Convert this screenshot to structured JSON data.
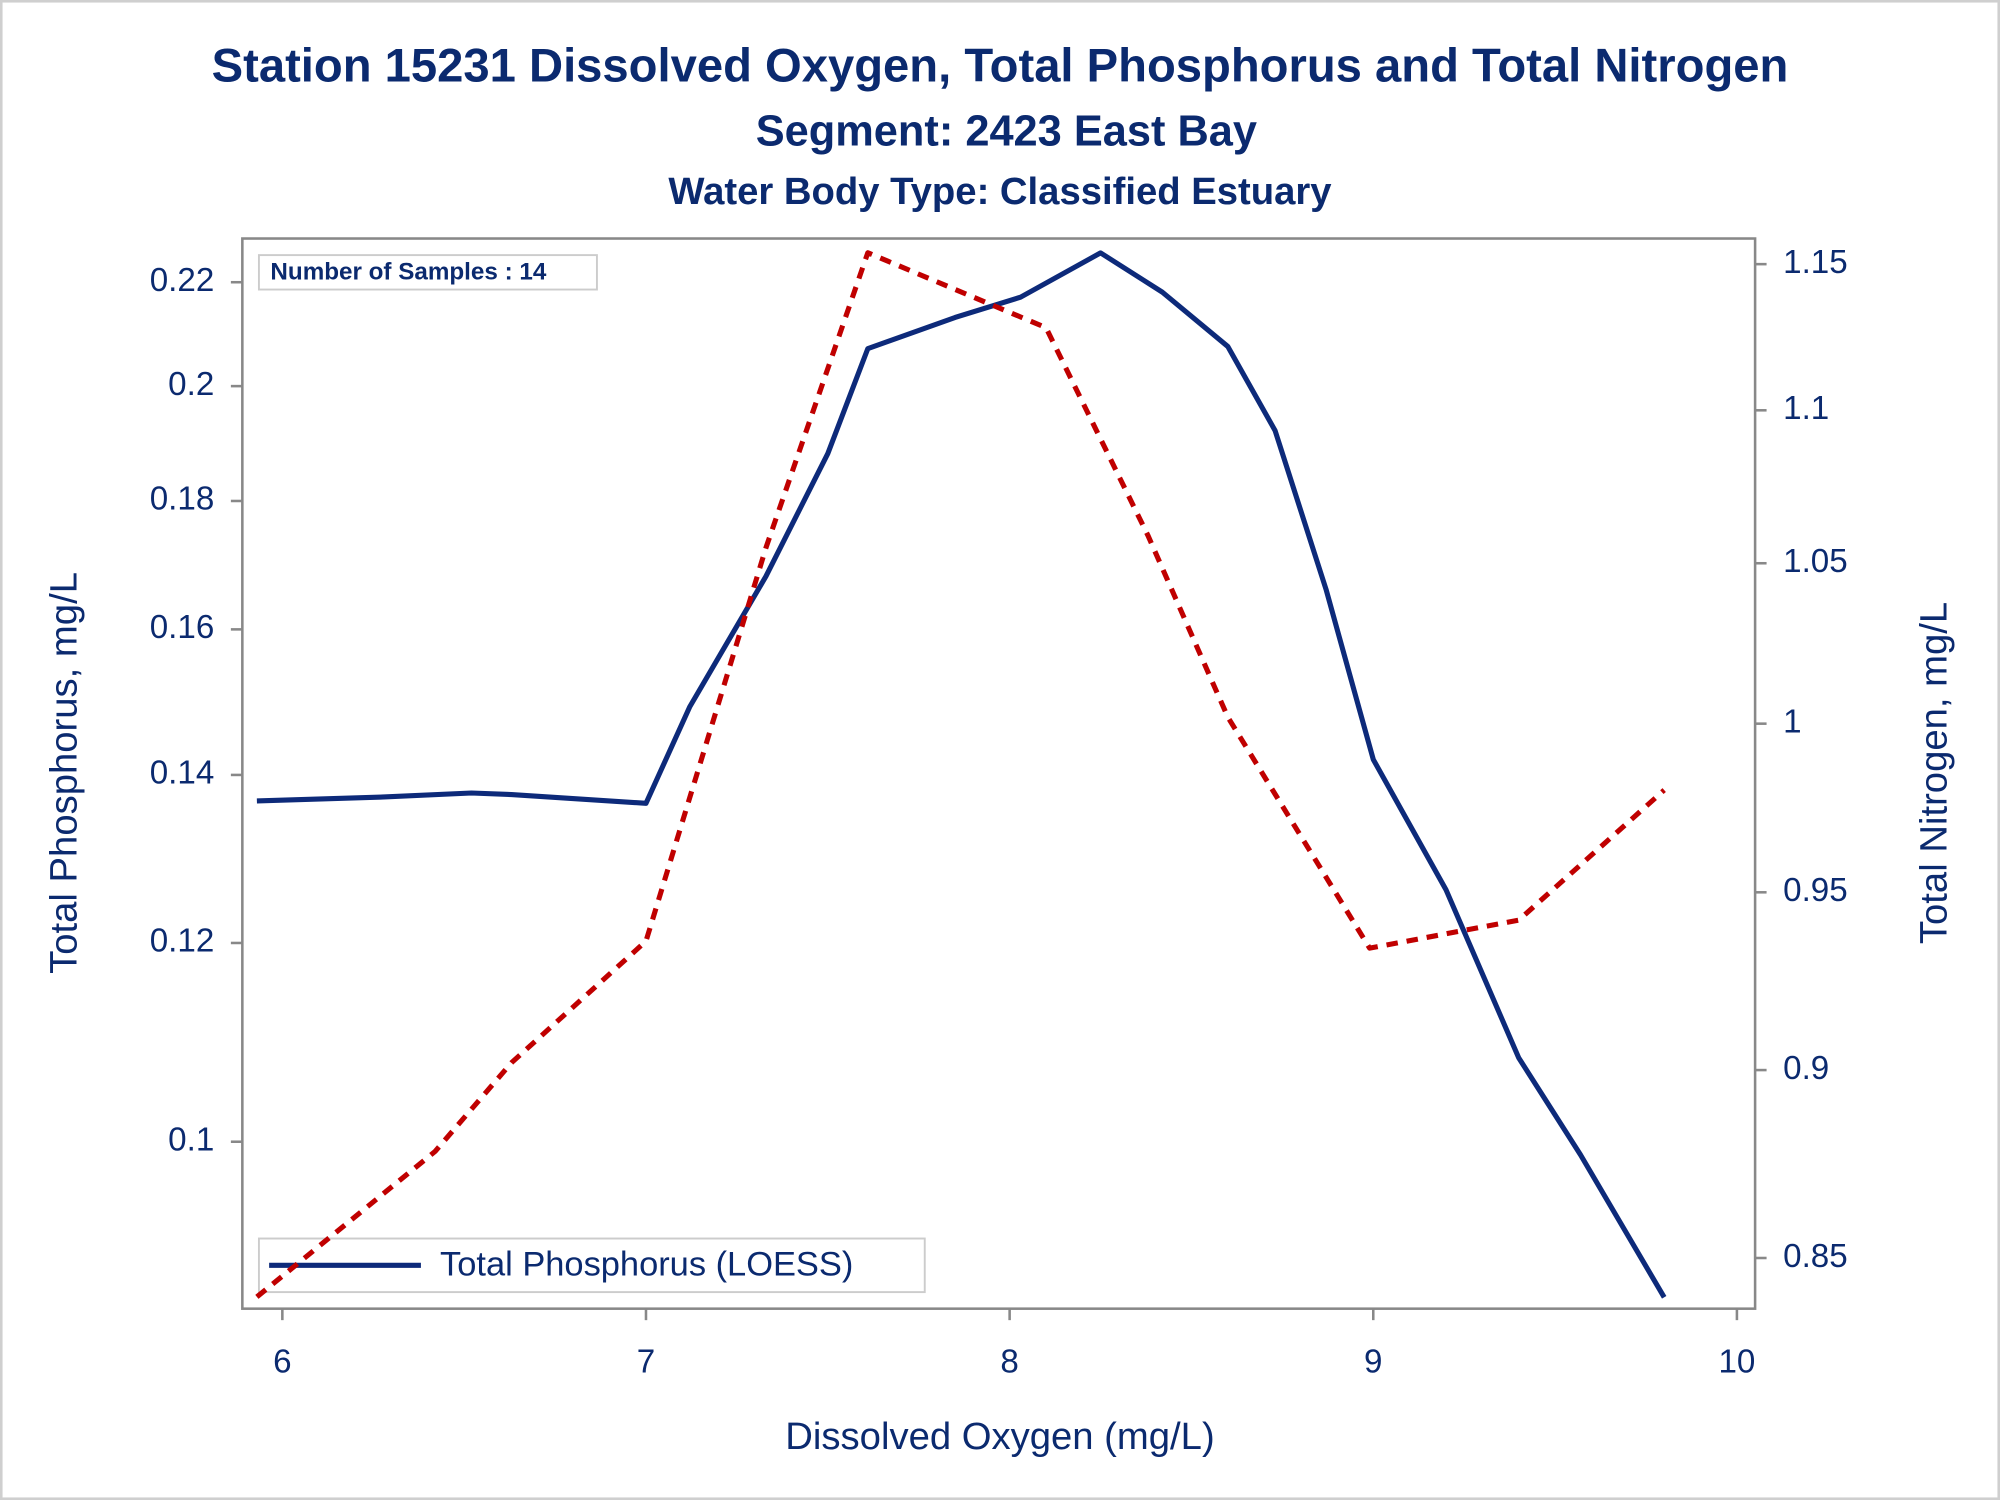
{
  "chart_data": {
    "type": "line",
    "title": "Station 15231  Dissolved Oxygen, Total Phosphorus and Total Nitrogen",
    "subtitle": "Segment: 2423  East Bay",
    "subtitle2": "Water Body Type: Classified Estuary",
    "annotation": "Number of Samples : 14",
    "x_label": "Dissolved Oxygen (mg/L)",
    "y_label": "Total Phosphorus, mg/L",
    "y2_label": "Total Nitrogen, mg/L",
    "xlim": [
      5.89,
      10.05
    ],
    "xticks": [
      6,
      7,
      8,
      9,
      10
    ],
    "ylim": [
      0.0858,
      0.229
    ],
    "yticks": [
      0.1,
      0.12,
      0.14,
      0.16,
      0.18,
      0.2,
      0.22
    ],
    "log_y": true,
    "y2lim": [
      0.837,
      1.159
    ],
    "y2ticks": [
      0.85,
      0.9,
      0.95,
      1,
      1.05,
      1.1,
      1.15
    ],
    "log_y2": true,
    "legend": "bottom-left",
    "series": [
      {
        "name": "Total Phosphorus (LOESS)",
        "color": "#0d2a7a",
        "dash": false,
        "x": [
          5.93,
          6.28,
          6.52,
          6.63,
          7.0,
          7.12,
          7.33,
          7.5,
          7.61,
          7.85,
          8.03,
          8.25,
          8.42,
          8.6,
          8.73,
          8.87,
          9.0,
          9.2,
          9.4,
          9.57,
          9.8
        ],
        "values": [
          0.1367,
          0.1372,
          0.1377,
          0.1375,
          0.1364,
          0.149,
          0.168,
          0.188,
          0.207,
          0.213,
          0.217,
          0.226,
          0.218,
          0.2074,
          0.192,
          0.166,
          0.142,
          0.126,
          0.108,
          0.0988,
          0.0867
        ]
      },
      {
        "color": "#c00000",
        "dash": true,
        "axis": "y2",
        "x": [
          5.93,
          6.42,
          6.63,
          7.0,
          7.33,
          7.61,
          8.1,
          8.38,
          8.6,
          8.99,
          9.4,
          9.8
        ],
        "values": [
          0.84,
          0.878,
          0.902,
          0.936,
          1.055,
          1.154,
          1.128,
          1.059,
          1.002,
          0.934,
          0.942,
          0.98
        ]
      }
    ]
  }
}
